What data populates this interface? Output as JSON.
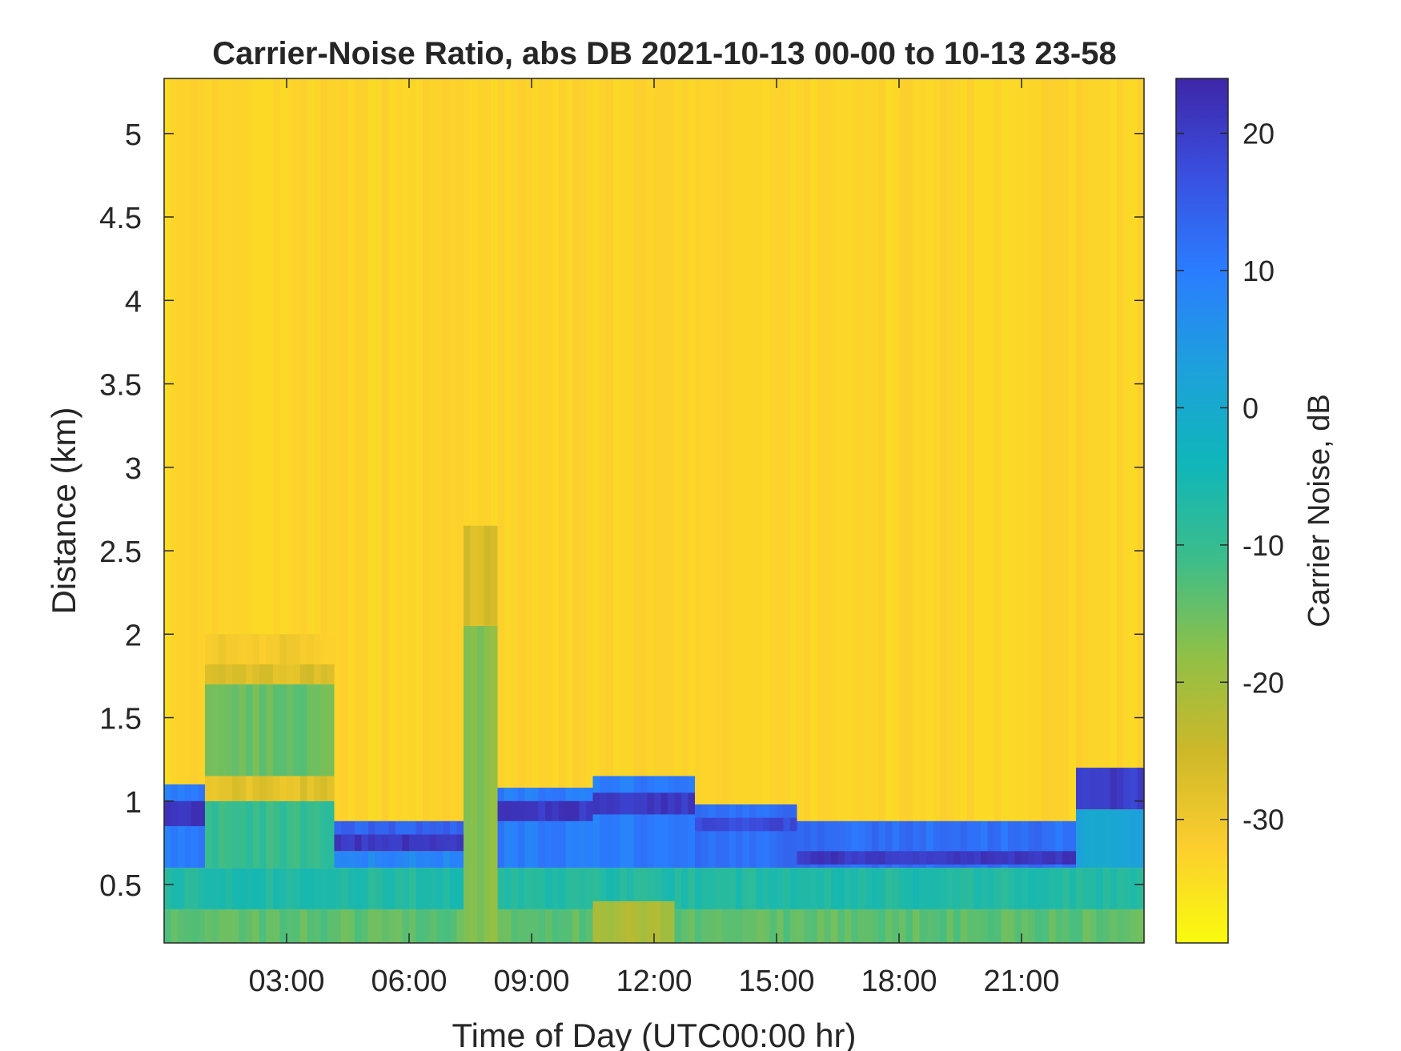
{
  "chart_data": {
    "type": "heatmap",
    "title": "Carrier-Noise Ratio, abs DB 2021-10-13 00-00 to 10-13 23-58",
    "xlabel": "Time of Day (UTC00:00 hr)",
    "ylabel": "Distance (km)",
    "colorbar_label": "Carrier Noise, dB",
    "colormap": "parula-reversed",
    "colormap_stops": [
      "#f9fb0e",
      "#fcce2e",
      "#cdb829",
      "#8fc047",
      "#3bbd8a",
      "#0fb6ba",
      "#1ea0dc",
      "#2a7dff",
      "#3a4fe0",
      "#3e26a8"
    ],
    "x_range_hours": [
      0,
      24
    ],
    "y_range_km": [
      0.15,
      5.33
    ],
    "color_range_db": [
      -39,
      24
    ],
    "x_ticks": [
      "03:00",
      "06:00",
      "09:00",
      "12:00",
      "15:00",
      "18:00",
      "21:00"
    ],
    "x_tick_hours": [
      3,
      6,
      9,
      12,
      15,
      18,
      21
    ],
    "y_ticks": [
      "0.5",
      "1",
      "1.5",
      "2",
      "2.5",
      "3",
      "3.5",
      "4",
      "4.5",
      "5"
    ],
    "y_tick_values": [
      0.5,
      1,
      1.5,
      2,
      2.5,
      3,
      3.5,
      4,
      4.5,
      5
    ],
    "colorbar_ticks": [
      "-30",
      "-20",
      "-10",
      "0",
      "10",
      "20"
    ],
    "colorbar_tick_values": [
      -30,
      -20,
      -10,
      0,
      10,
      20
    ],
    "background_db": -33,
    "regions": [
      {
        "t0": 0.0,
        "t1": 24.0,
        "d0": 0.15,
        "d1": 0.35,
        "db": -14
      },
      {
        "t0": 0.0,
        "t1": 24.0,
        "d0": 0.35,
        "d1": 0.6,
        "db": -7
      },
      {
        "t0": 0.0,
        "t1": 1.0,
        "d0": 0.6,
        "d1": 1.1,
        "db": 10
      },
      {
        "t0": 0.0,
        "t1": 1.0,
        "d0": 0.85,
        "d1": 1.0,
        "db": 21
      },
      {
        "t0": 1.0,
        "t1": 4.1,
        "d0": 0.6,
        "d1": 1.0,
        "db": -10
      },
      {
        "t0": 1.0,
        "t1": 4.1,
        "d0": 1.0,
        "d1": 1.15,
        "db": -28
      },
      {
        "t0": 1.0,
        "t1": 4.1,
        "d0": 1.15,
        "d1": 1.7,
        "db": -15
      },
      {
        "t0": 1.0,
        "t1": 4.1,
        "d0": 1.7,
        "d1": 1.82,
        "db": -27
      },
      {
        "t0": 1.0,
        "t1": 4.1,
        "d0": 1.82,
        "d1": 2.0,
        "db": -31
      },
      {
        "t0": 4.1,
        "t1": 7.3,
        "d0": 0.6,
        "d1": 0.7,
        "db": 8
      },
      {
        "t0": 4.1,
        "t1": 7.3,
        "d0": 0.7,
        "d1": 0.8,
        "db": 21
      },
      {
        "t0": 4.1,
        "t1": 7.3,
        "d0": 0.8,
        "d1": 0.88,
        "db": 14
      },
      {
        "t0": 7.3,
        "t1": 8.1,
        "d0": 0.15,
        "d1": 2.05,
        "db": -17
      },
      {
        "t0": 7.3,
        "t1": 8.1,
        "d0": 2.05,
        "d1": 2.65,
        "db": -27
      },
      {
        "t0": 8.1,
        "t1": 10.5,
        "d0": 0.6,
        "d1": 1.08,
        "db": 10
      },
      {
        "t0": 8.1,
        "t1": 10.5,
        "d0": 0.88,
        "d1": 1.0,
        "db": 21
      },
      {
        "t0": 10.5,
        "t1": 13.0,
        "d0": 0.6,
        "d1": 1.15,
        "db": 10
      },
      {
        "t0": 10.5,
        "t1": 13.0,
        "d0": 0.92,
        "d1": 1.05,
        "db": 21
      },
      {
        "t0": 13.0,
        "t1": 15.5,
        "d0": 0.6,
        "d1": 0.98,
        "db": 12
      },
      {
        "t0": 13.0,
        "t1": 15.5,
        "d0": 0.82,
        "d1": 0.9,
        "db": 18
      },
      {
        "t0": 15.5,
        "t1": 22.4,
        "d0": 0.6,
        "d1": 0.88,
        "db": 12
      },
      {
        "t0": 15.5,
        "t1": 22.4,
        "d0": 0.62,
        "d1": 0.7,
        "db": 21
      },
      {
        "t0": 22.4,
        "t1": 24.0,
        "d0": 0.6,
        "d1": 0.95,
        "db": 2
      },
      {
        "t0": 22.4,
        "t1": 24.0,
        "d0": 0.95,
        "d1": 1.2,
        "db": 20
      },
      {
        "t0": 10.5,
        "t1": 12.5,
        "d0": 0.15,
        "d1": 0.4,
        "db": -21
      }
    ]
  }
}
